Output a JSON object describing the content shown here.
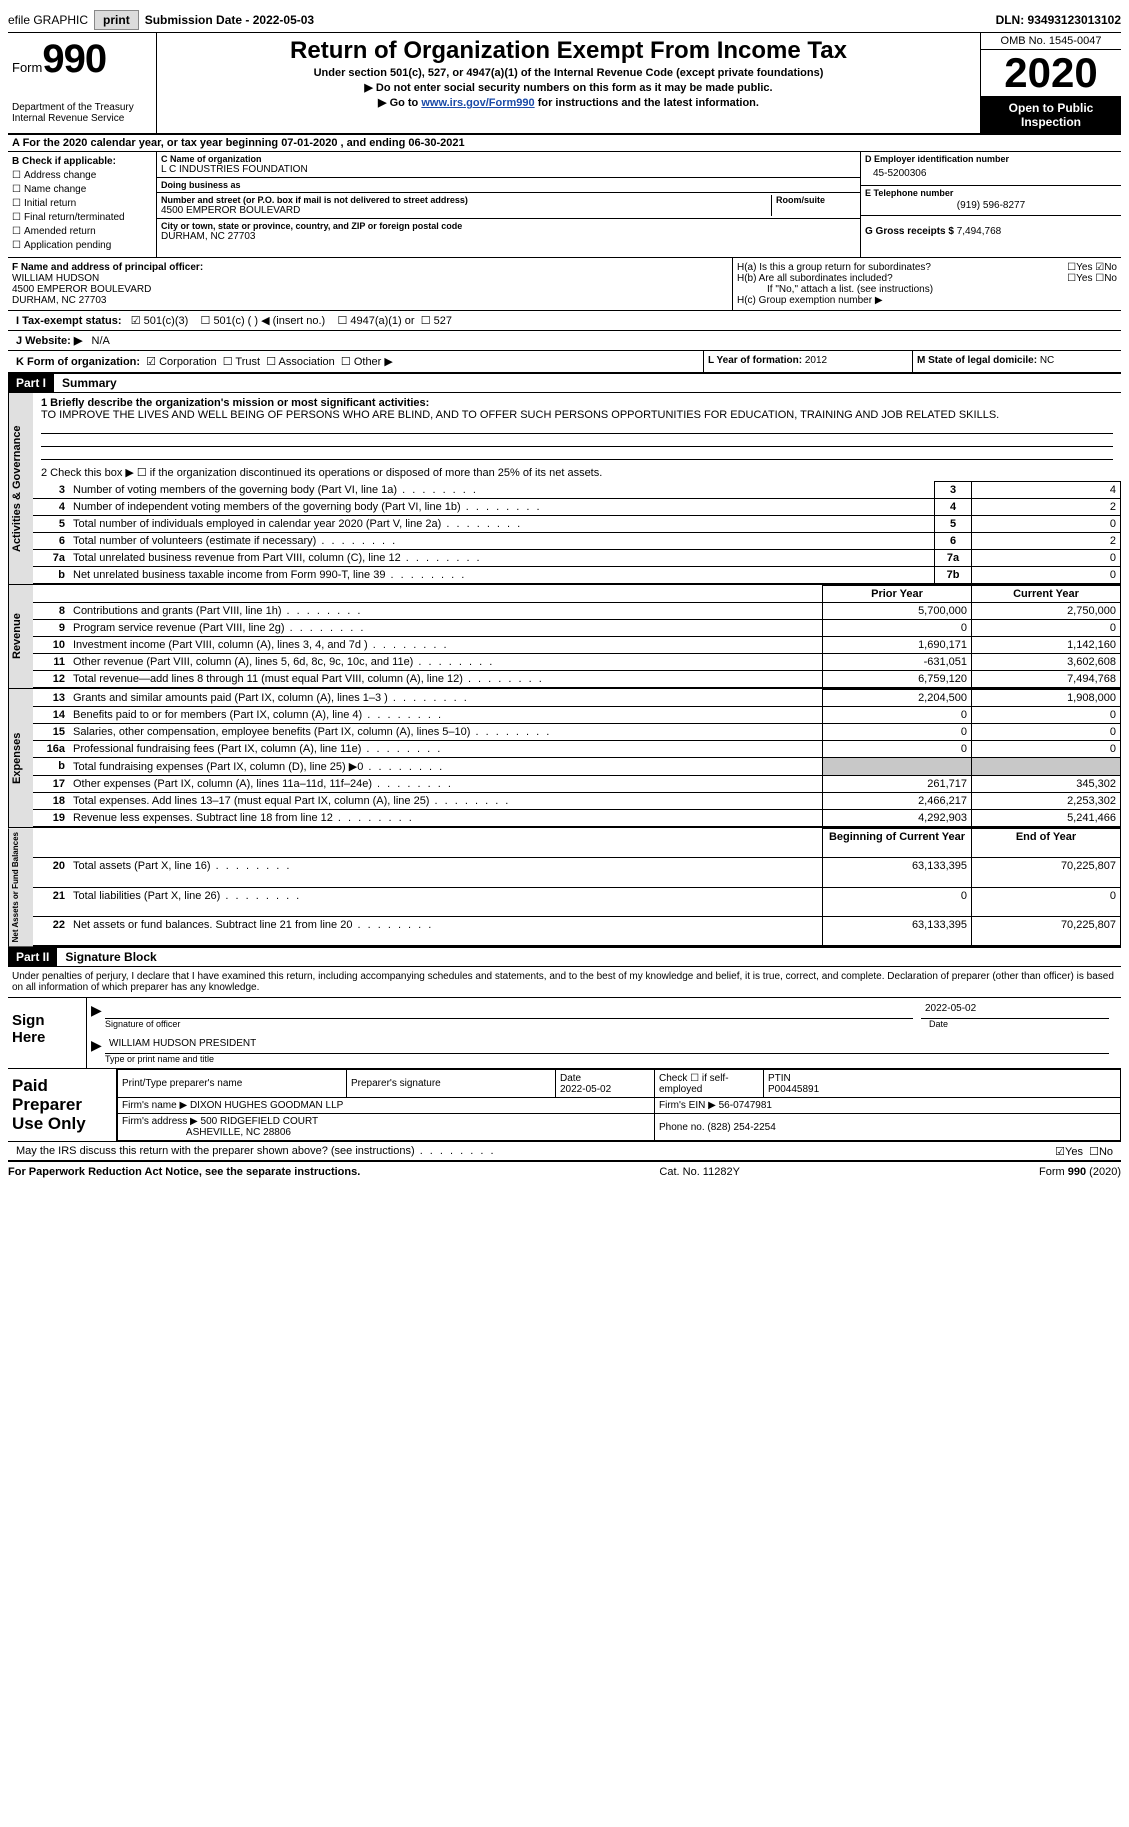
{
  "topbar": {
    "efile_label": "efile GRAPHIC",
    "print_label": "print",
    "submission_label": "Submission Date - 2022-05-03",
    "dln_label": "DLN: 93493123013102"
  },
  "header": {
    "form_prefix": "Form",
    "form_no": "990",
    "dept": "Department of the Treasury\nInternal Revenue Service",
    "title": "Return of Organization Exempt From Income Tax",
    "sub1": "Under section 501(c), 527, or 4947(a)(1) of the Internal Revenue Code (except private foundations)",
    "sub2": "Do not enter social security numbers on this form as it may be made public.",
    "sub3_pre": "Go to ",
    "sub3_link": "www.irs.gov/Form990",
    "sub3_post": " for instructions and the latest information.",
    "omb": "OMB No. 1545-0047",
    "year": "2020",
    "inspect": "Open to Public Inspection"
  },
  "period": {
    "label": "A For the 2020 calendar year, or tax year beginning 07-01-2020   , and ending 06-30-2021"
  },
  "boxB": {
    "header": "B Check if applicable:",
    "opts": [
      "Address change",
      "Name change",
      "Initial return",
      "Final return/terminated",
      "Amended return",
      "Application pending"
    ]
  },
  "boxC": {
    "name_lbl": "C Name of organization",
    "name": "L C INDUSTRIES FOUNDATION",
    "dba_lbl": "Doing business as",
    "dba": "",
    "addr_lbl": "Number and street (or P.O. box if mail is not delivered to street address)",
    "room_lbl": "Room/suite",
    "addr": "4500 EMPEROR BOULEVARD",
    "city_lbl": "City or town, state or province, country, and ZIP or foreign postal code",
    "city": "DURHAM, NC  27703"
  },
  "boxD": {
    "ein_lbl": "D Employer identification number",
    "ein": "45-5200306",
    "tel_lbl": "E Telephone number",
    "tel": "(919) 596-8277",
    "gross_lbl": "G Gross receipts $",
    "gross": "7,494,768"
  },
  "boxF": {
    "lbl": "F  Name and address of principal officer:",
    "name": "WILLIAM HUDSON",
    "addr1": "4500 EMPEROR BOULEVARD",
    "addr2": "DURHAM, NC  27703"
  },
  "boxH": {
    "a": "H(a)  Is this a group return for subordinates?",
    "a_yes": "Yes",
    "a_no": "No",
    "b": "H(b)  Are all subordinates included?",
    "b_yes": "Yes",
    "b_no": "No",
    "b_note": "If \"No,\" attach a list. (see instructions)",
    "c": "H(c)  Group exemption number ▶"
  },
  "lineI": {
    "lbl": "I     Tax-exempt status:",
    "o1": "501(c)(3)",
    "o2": "501(c) (  ) ◀ (insert no.)",
    "o3": "4947(a)(1) or",
    "o4": "527"
  },
  "lineJ": {
    "lbl": "J    Website: ▶",
    "val": "N/A"
  },
  "lineK": {
    "lbl": "K Form of organization:",
    "o1": "Corporation",
    "o2": "Trust",
    "o3": "Association",
    "o4": "Other ▶"
  },
  "lineL": {
    "lbl": "L Year of formation:",
    "val": "2012"
  },
  "lineM": {
    "lbl": "M State of legal domicile:",
    "val": "NC"
  },
  "part1": {
    "hdr": "Part I",
    "title": "Summary",
    "mission_lbl": "1   Briefly describe the organization's mission or most significant activities:",
    "mission": "TO IMPROVE THE LIVES AND WELL BEING OF PERSONS WHO ARE BLIND, AND TO OFFER SUCH PERSONS OPPORTUNITIES FOR EDUCATION, TRAINING AND JOB RELATED SKILLS.",
    "line2": "2    Check this box ▶ ☐  if the organization discontinued its operations or disposed of more than 25% of its net assets.",
    "gov_tab": "Activities & Governance",
    "gov_rows": [
      {
        "n": "3",
        "t": "Number of voting members of the governing body (Part VI, line 1a)",
        "box": "3",
        "v": "4"
      },
      {
        "n": "4",
        "t": "Number of independent voting members of the governing body (Part VI, line 1b)",
        "box": "4",
        "v": "2"
      },
      {
        "n": "5",
        "t": "Total number of individuals employed in calendar year 2020 (Part V, line 2a)",
        "box": "5",
        "v": "0"
      },
      {
        "n": "6",
        "t": "Total number of volunteers (estimate if necessary)",
        "box": "6",
        "v": "2"
      },
      {
        "n": "7a",
        "t": "Total unrelated business revenue from Part VIII, column (C), line 12",
        "box": "7a",
        "v": "0"
      },
      {
        "n": "b",
        "t": "Net unrelated business taxable income from Form 990-T, line 39",
        "box": "7b",
        "v": "0"
      }
    ],
    "col_prior": "Prior Year",
    "col_current": "Current Year",
    "rev_tab": "Revenue",
    "rev_rows": [
      {
        "n": "8",
        "t": "Contributions and grants (Part VIII, line 1h)",
        "p": "5,700,000",
        "c": "2,750,000"
      },
      {
        "n": "9",
        "t": "Program service revenue (Part VIII, line 2g)",
        "p": "0",
        "c": "0"
      },
      {
        "n": "10",
        "t": "Investment income (Part VIII, column (A), lines 3, 4, and 7d )",
        "p": "1,690,171",
        "c": "1,142,160"
      },
      {
        "n": "11",
        "t": "Other revenue (Part VIII, column (A), lines 5, 6d, 8c, 9c, 10c, and 11e)",
        "p": "-631,051",
        "c": "3,602,608"
      },
      {
        "n": "12",
        "t": "Total revenue—add lines 8 through 11 (must equal Part VIII, column (A), line 12)",
        "p": "6,759,120",
        "c": "7,494,768"
      }
    ],
    "exp_tab": "Expenses",
    "exp_rows": [
      {
        "n": "13",
        "t": "Grants and similar amounts paid (Part IX, column (A), lines 1–3 )",
        "p": "2,204,500",
        "c": "1,908,000"
      },
      {
        "n": "14",
        "t": "Benefits paid to or for members (Part IX, column (A), line 4)",
        "p": "0",
        "c": "0"
      },
      {
        "n": "15",
        "t": "Salaries, other compensation, employee benefits (Part IX, column (A), lines 5–10)",
        "p": "0",
        "c": "0"
      },
      {
        "n": "16a",
        "t": "Professional fundraising fees (Part IX, column (A), line 11e)",
        "p": "0",
        "c": "0"
      },
      {
        "n": "b",
        "t": "Total fundraising expenses (Part IX, column (D), line 25) ▶0",
        "p": "",
        "c": "",
        "shade": true
      },
      {
        "n": "17",
        "t": "Other expenses (Part IX, column (A), lines 11a–11d, 11f–24e)",
        "p": "261,717",
        "c": "345,302"
      },
      {
        "n": "18",
        "t": "Total expenses. Add lines 13–17 (must equal Part IX, column (A), line 25)",
        "p": "2,466,217",
        "c": "2,253,302"
      },
      {
        "n": "19",
        "t": "Revenue less expenses. Subtract line 18 from line 12",
        "p": "4,292,903",
        "c": "5,241,466"
      }
    ],
    "na_tab": "Net Assets or Fund Balances",
    "col_beg": "Beginning of Current Year",
    "col_end": "End of Year",
    "na_rows": [
      {
        "n": "20",
        "t": "Total assets (Part X, line 16)",
        "p": "63,133,395",
        "c": "70,225,807"
      },
      {
        "n": "21",
        "t": "Total liabilities (Part X, line 26)",
        "p": "0",
        "c": "0"
      },
      {
        "n": "22",
        "t": "Net assets or fund balances. Subtract line 21 from line 20",
        "p": "63,133,395",
        "c": "70,225,807"
      }
    ]
  },
  "part2": {
    "hdr": "Part II",
    "title": "Signature Block",
    "disclaimer": "Under penalties of perjury, I declare that I have examined this return, including accompanying schedules and statements, and to the best of my knowledge and belief, it is true, correct, and complete. Declaration of preparer (other than officer) is based on all information of which preparer has any knowledge.",
    "sign_here": "Sign Here",
    "sig_officer_lbl": "Signature of officer",
    "sig_date": "2022-05-02",
    "date_lbl": "Date",
    "name_title": "WILLIAM HUDSON  PRESIDENT",
    "name_title_lbl": "Type or print name and title",
    "paid_hdr": "Paid Preparer Use Only",
    "prep_name_lbl": "Print/Type preparer's name",
    "prep_sig_lbl": "Preparer's signature",
    "prep_date_lbl": "Date",
    "prep_date": "2022-05-02",
    "self_emp_lbl": "Check ☐ if self-employed",
    "ptin_lbl": "PTIN",
    "ptin": "P00445891",
    "firm_name_lbl": "Firm's name    ▶",
    "firm_name": "DIXON HUGHES GOODMAN LLP",
    "firm_ein_lbl": "Firm's EIN ▶",
    "firm_ein": "56-0747981",
    "firm_addr_lbl": "Firm's address ▶",
    "firm_addr1": "500 RIDGEFIELD COURT",
    "firm_addr2": "ASHEVILLE, NC  28806",
    "firm_phone_lbl": "Phone no.",
    "firm_phone": "(828) 254-2254",
    "may_irs": "May the IRS discuss this return with the preparer shown above? (see instructions)",
    "yes": "Yes",
    "no": "No"
  },
  "footer": {
    "pra": "For Paperwork Reduction Act Notice, see the separate instructions.",
    "cat": "Cat. No. 11282Y",
    "form": "Form 990 (2020)"
  }
}
